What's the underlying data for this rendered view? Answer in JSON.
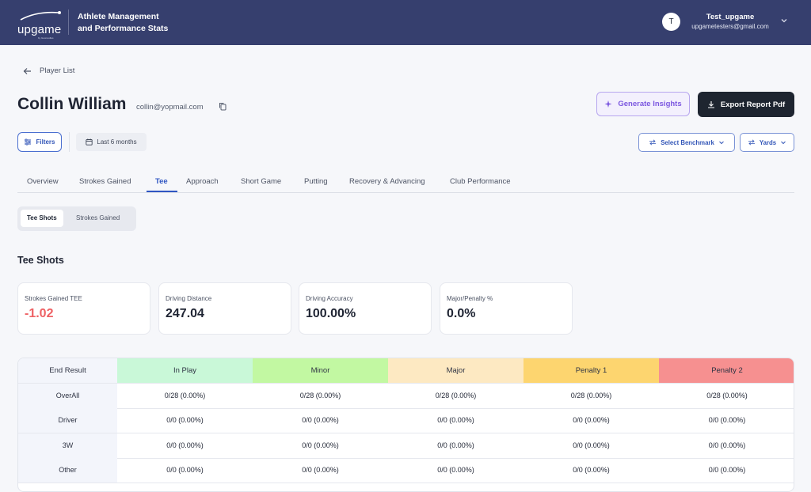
{
  "header": {
    "brand": "upgame",
    "brand_sub": "by Gooroodles",
    "app_title_line1": "Athlete Management",
    "app_title_line2": "and Performance Stats",
    "user_initial": "T",
    "user_name": "Test_upgame",
    "user_email": "upgametesters@gmail.com",
    "colors": {
      "bar": "#363f6e"
    }
  },
  "breadcrumb": {
    "back_label": "Player List"
  },
  "player": {
    "name": "Collin William",
    "email": "collin@yopmail.com"
  },
  "actions": {
    "insights": "Generate Insights",
    "export": "Export Report Pdf"
  },
  "filters": {
    "filters_label": "Filters",
    "date_range": "Last 6 months",
    "benchmark": "Select Benchmark",
    "units": "Yards"
  },
  "tabs": [
    {
      "label": "Overview"
    },
    {
      "label": "Strokes Gained"
    },
    {
      "label": "Tee"
    },
    {
      "label": "Approach"
    },
    {
      "label": "Short Game"
    },
    {
      "label": "Putting"
    },
    {
      "label": "Recovery & Advancing"
    },
    {
      "label": "Club Performance"
    }
  ],
  "active_tab": "Tee",
  "subtabs": [
    {
      "label": "Tee Shots"
    },
    {
      "label": "Strokes Gained"
    }
  ],
  "section_title": "Tee Shots",
  "cards": [
    {
      "label": "Strokes Gained TEE",
      "value": "-1.02"
    },
    {
      "label": "Driving Distance",
      "value": "247.04"
    },
    {
      "label": "Driving Accuracy",
      "value": "100.00%"
    },
    {
      "label": "Major/Penalty %",
      "value": "0.0%"
    }
  ],
  "table": {
    "headers": [
      "End Result",
      "In Play",
      "Minor",
      "Major",
      "Penalty 1",
      "Penalty 2"
    ],
    "header_colors": [
      "#f3f5fb",
      "#c9f8d8",
      "#c2f8a2",
      "#fde9c2",
      "#fdd56f",
      "#f69090"
    ],
    "rows": [
      [
        "OverAll",
        "0/28 (0.00%)",
        "0/28 (0.00%)",
        "0/28 (0.00%)",
        "0/28 (0.00%)",
        "0/28 (0.00%)"
      ],
      [
        "Driver",
        "0/0 (0.00%)",
        "0/0 (0.00%)",
        "0/0 (0.00%)",
        "0/0 (0.00%)",
        "0/0 (0.00%)"
      ],
      [
        "3W",
        "0/0 (0.00%)",
        "0/0 (0.00%)",
        "0/0 (0.00%)",
        "0/0 (0.00%)",
        "0/0 (0.00%)"
      ],
      [
        "Other",
        "0/0 (0.00%)",
        "0/0 (0.00%)",
        "0/0 (0.00%)",
        "0/0 (0.00%)",
        "0/0 (0.00%)"
      ]
    ]
  }
}
